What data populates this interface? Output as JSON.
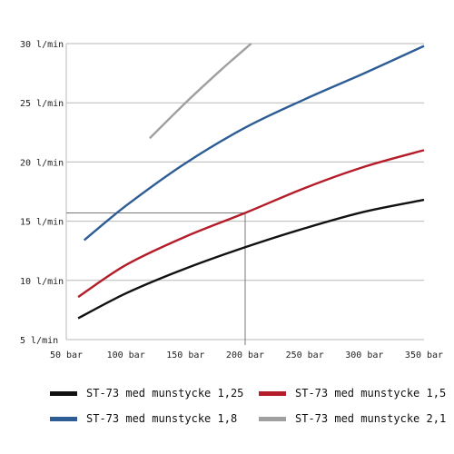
{
  "chart_data": {
    "type": "line",
    "xlim": [
      50,
      350
    ],
    "ylim": [
      5,
      30
    ],
    "x_ticks": [
      50,
      100,
      150,
      200,
      250,
      300,
      350
    ],
    "x_tick_labels": [
      "50 bar",
      "100 bar",
      "150 bar",
      "200 bar",
      "250 bar",
      "300 bar",
      "350 bar"
    ],
    "y_ticks": [
      5,
      10,
      15,
      20,
      25,
      30
    ],
    "y_tick_labels": [
      "5 l/min",
      "10 l/min",
      "15 l/min",
      "20 l/min",
      "25 l/min",
      "30 l/min"
    ],
    "grid": "horizontal",
    "legend_position": "bottom",
    "reference_point": {
      "x": 200,
      "y": 15.7
    },
    "series": [
      {
        "name": "ST-73 med munstycke 1,25",
        "color": "#111111",
        "x": [
          60,
          100,
          150,
          200,
          250,
          300,
          350
        ],
        "y": [
          6.8,
          8.9,
          11.0,
          12.8,
          14.4,
          15.8,
          16.8
        ]
      },
      {
        "name": "ST-73 med munstycke 1,5",
        "color": "#b51c2a",
        "x": [
          60,
          100,
          150,
          200,
          250,
          300,
          350
        ],
        "y": [
          8.6,
          11.3,
          13.7,
          15.7,
          17.8,
          19.6,
          21.0
        ]
      },
      {
        "name": "ST-73 med munstycke 1,8",
        "color": "#2e5d96",
        "x": [
          65,
          100,
          150,
          200,
          250,
          300,
          350
        ],
        "y": [
          13.4,
          16.3,
          19.9,
          22.9,
          25.3,
          27.5,
          29.8
        ]
      },
      {
        "name": "ST-73 med munstycke 2,1",
        "color": "#a0a0a0",
        "x": [
          120,
          150,
          180,
          205
        ],
        "y": [
          22.0,
          25.0,
          27.8,
          30.0
        ]
      }
    ]
  }
}
